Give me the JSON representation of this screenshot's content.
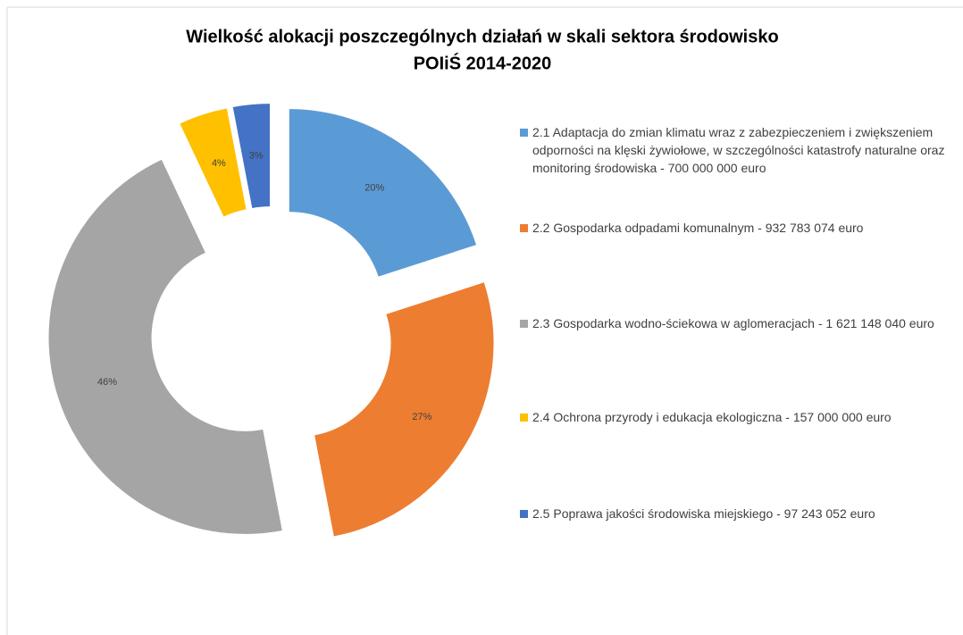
{
  "chart_data": {
    "type": "donut",
    "title": [
      "Wielkość alokacji poszczególnych działań w skali sektora środowisko",
      "POIiŚ 2014-2020"
    ],
    "categories": [
      "2.1 Adaptacja do zmian klimatu wraz z zabezpieczeniem i zwiększeniem odporności na klęski żywiołowe, w szczególności katastrofy naturalne oraz monitoring środowiska - 700 000 000 euro",
      "2.2 Gospodarka odpadami komunalnym - 932 783 074 euro",
      "2.3 Gospodarka wodno-ściekowa w aglomeracjach - 1 621 148 040 euro",
      "2.4 Ochrona przyrody i edukacja ekologiczna - 157 000 000 euro",
      "2.5 Poprawa jakości środowiska miejskiego - 97 243 052 euro"
    ],
    "values": [
      20,
      27,
      46,
      4,
      3
    ],
    "value_labels": [
      "20%",
      "27%",
      "46%",
      "4%",
      "3%"
    ],
    "colors": [
      "#5b9bd5",
      "#ed7d31",
      "#a5a5a5",
      "#ffc000",
      "#4472c4"
    ],
    "exploded": true,
    "legend": "right"
  }
}
